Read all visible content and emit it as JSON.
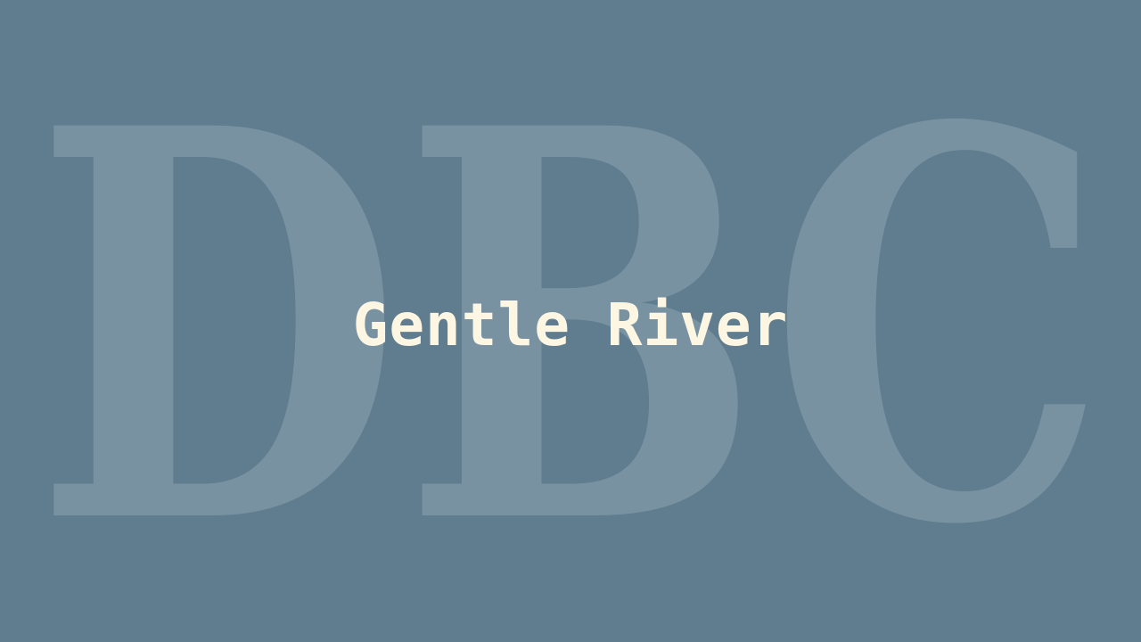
{
  "watermark": {
    "text": "DBC",
    "color": "#8ea4b2"
  },
  "title": "Gentle River",
  "colors": {
    "background": "#5f7d8e",
    "title": "#fdf6e3",
    "watermark": "#8ea4b2"
  }
}
